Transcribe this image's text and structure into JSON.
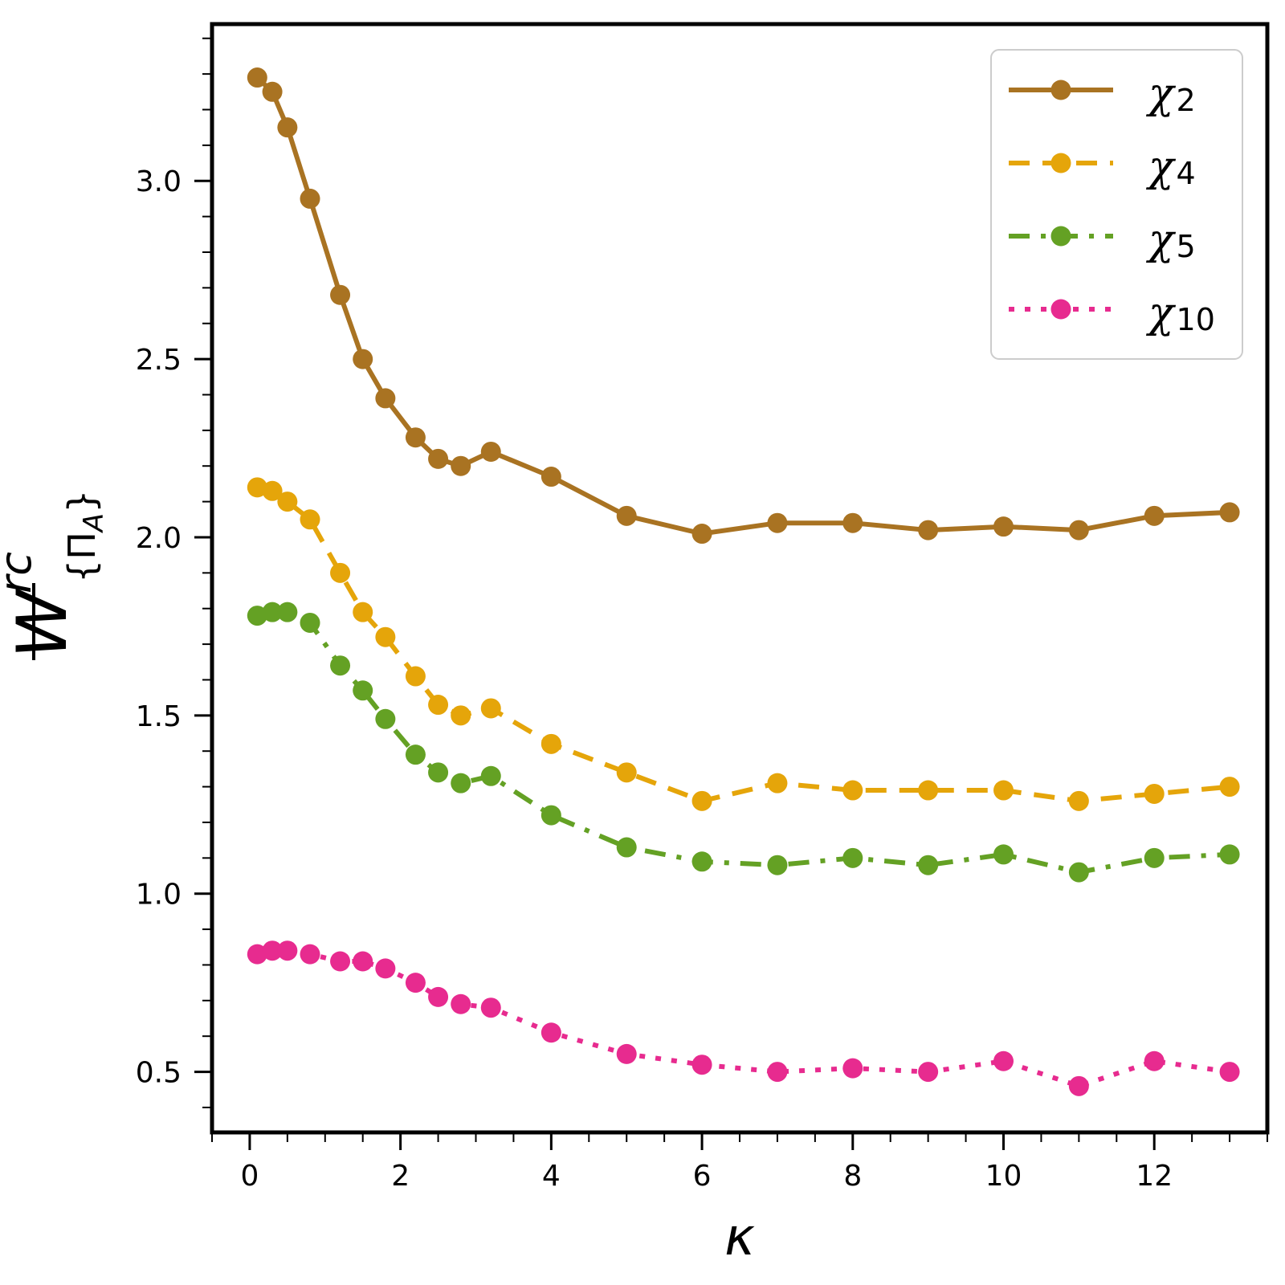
{
  "chart_data": {
    "type": "line",
    "title": "",
    "xlabel": "κ",
    "ylabel": {
      "base": "W",
      "superscript": "rc",
      "subscript": "{Π",
      "subscript_inner": "A",
      "subscript_close": "}"
    },
    "xlim": [
      -0.5,
      13.5
    ],
    "ylim": [
      0.33,
      3.44
    ],
    "x_ticks": [
      0,
      2,
      4,
      6,
      8,
      10,
      12
    ],
    "x_tick_labels": [
      "0",
      "2",
      "4",
      "6",
      "8",
      "10",
      "12"
    ],
    "y_ticks": [
      0.5,
      1.0,
      1.5,
      2.0,
      2.5,
      3.0
    ],
    "y_tick_labels": [
      "0.5",
      "1.0",
      "1.5",
      "2.0",
      "2.5",
      "3.0"
    ],
    "grid": false,
    "legend_position": "top-right",
    "x": [
      0.1,
      0.3,
      0.5,
      0.8,
      1.2,
      1.5,
      1.8,
      2.2,
      2.5,
      2.8,
      3.2,
      4,
      5,
      6,
      7,
      8,
      9,
      10,
      11,
      12,
      13
    ],
    "series": [
      {
        "name": "χ",
        "subscript": "2",
        "color": "#a97322",
        "dash": "solid",
        "values": [
          3.29,
          3.25,
          3.15,
          2.95,
          2.68,
          2.5,
          2.39,
          2.28,
          2.22,
          2.2,
          2.24,
          2.17,
          2.06,
          2.01,
          2.04,
          2.04,
          2.02,
          2.03,
          2.02,
          2.06,
          2.07
        ]
      },
      {
        "name": "χ",
        "subscript": "4",
        "color": "#e5a50a",
        "dash": "dashed",
        "values": [
          2.14,
          2.13,
          2.1,
          2.05,
          1.9,
          1.79,
          1.72,
          1.61,
          1.53,
          1.5,
          1.52,
          1.42,
          1.34,
          1.26,
          1.31,
          1.29,
          1.29,
          1.29,
          1.26,
          1.28,
          1.3
        ]
      },
      {
        "name": "χ",
        "subscript": "5",
        "color": "#64a124",
        "dash": "dashdot",
        "values": [
          1.78,
          1.79,
          1.79,
          1.76,
          1.64,
          1.57,
          1.49,
          1.39,
          1.34,
          1.31,
          1.33,
          1.22,
          1.13,
          1.09,
          1.08,
          1.1,
          1.08,
          1.11,
          1.06,
          1.1,
          1.11
        ]
      },
      {
        "name": "χ",
        "subscript": "10",
        "color": "#e72b8f",
        "dash": "dotted",
        "values": [
          0.83,
          0.84,
          0.84,
          0.83,
          0.81,
          0.81,
          0.79,
          0.75,
          0.71,
          0.69,
          0.68,
          0.61,
          0.55,
          0.52,
          0.5,
          0.51,
          0.5,
          0.53,
          0.46,
          0.53,
          0.5
        ]
      }
    ]
  }
}
